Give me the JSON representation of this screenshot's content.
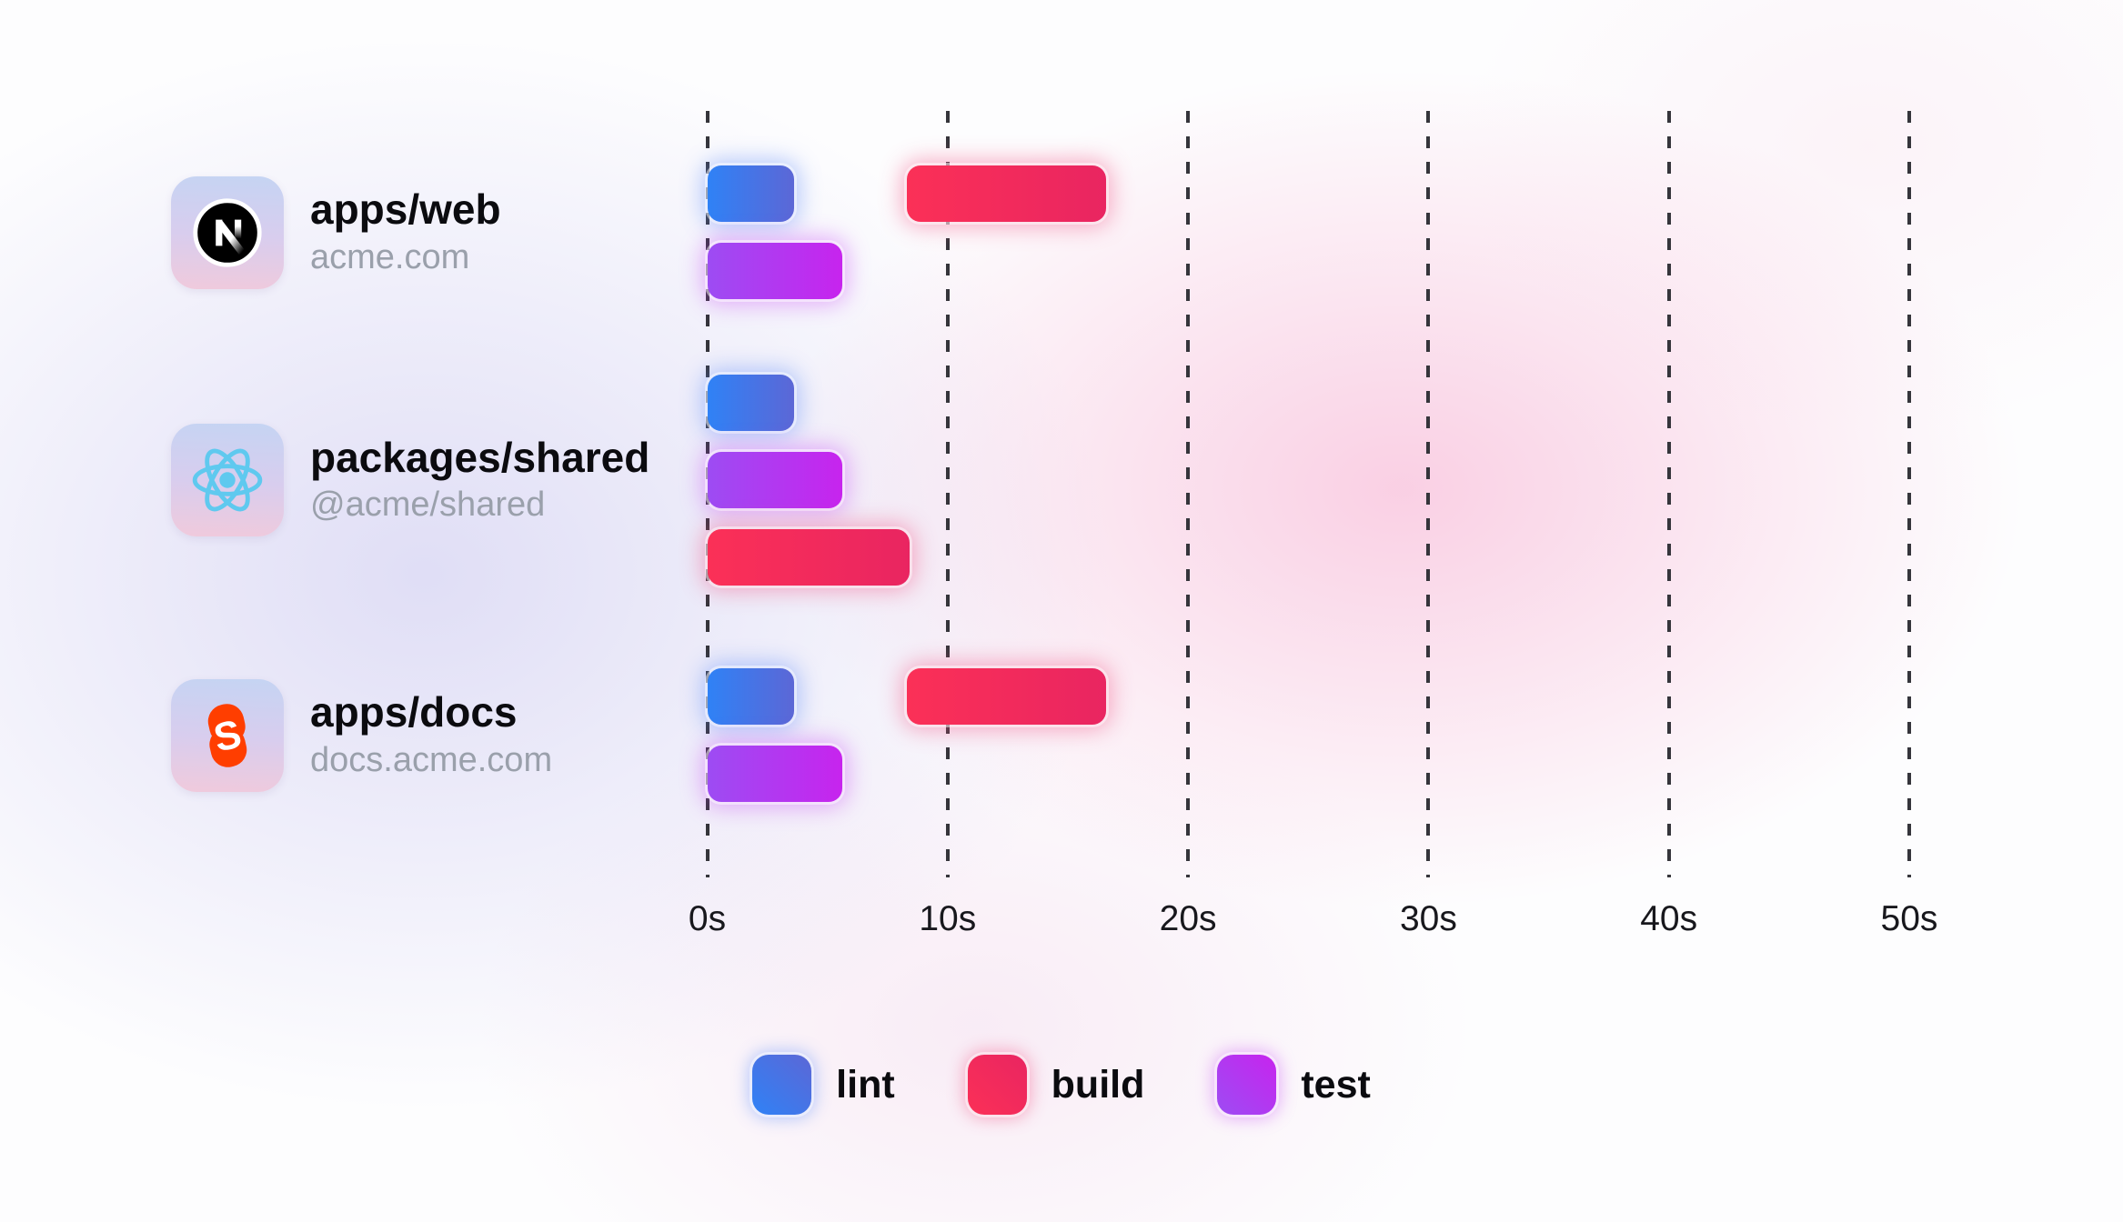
{
  "chart_data": {
    "type": "gantt",
    "title": "",
    "x_axis": {
      "unit": "seconds",
      "min": 0,
      "max": 50,
      "gridlines": "dashed-vertical",
      "ticks": [
        {
          "label": "0s",
          "value": 0
        },
        {
          "label": "10s",
          "value": 10
        },
        {
          "label": "20s",
          "value": 20
        },
        {
          "label": "30s",
          "value": 30
        },
        {
          "label": "40s",
          "value": 40
        },
        {
          "label": "50s",
          "value": 50
        }
      ]
    },
    "rows": [
      {
        "package": "apps/web",
        "subtitle": "acme.com",
        "icon": "nextjs-icon",
        "tasks": [
          {
            "task": "lint",
            "start_s": 0,
            "end_s": 3.6,
            "lane": 0
          },
          {
            "task": "build",
            "start_s": 8.3,
            "end_s": 16.6,
            "lane": 0
          },
          {
            "task": "test",
            "start_s": 0,
            "end_s": 5.6,
            "lane": 1
          }
        ]
      },
      {
        "package": "packages/shared",
        "subtitle": "@acme/shared",
        "icon": "react-icon",
        "tasks": [
          {
            "task": "lint",
            "start_s": 0,
            "end_s": 3.6,
            "lane": 0
          },
          {
            "task": "test",
            "start_s": 0,
            "end_s": 5.6,
            "lane": 1
          },
          {
            "task": "build",
            "start_s": 0,
            "end_s": 8.4,
            "lane": 2
          }
        ]
      },
      {
        "package": "apps/docs",
        "subtitle": "docs.acme.com",
        "icon": "svelte-icon",
        "tasks": [
          {
            "task": "lint",
            "start_s": 0,
            "end_s": 3.6,
            "lane": 0
          },
          {
            "task": "build",
            "start_s": 8.3,
            "end_s": 16.6,
            "lane": 0
          },
          {
            "task": "test",
            "start_s": 0,
            "end_s": 5.6,
            "lane": 1
          }
        ]
      }
    ],
    "legend": {
      "position": "bottom-center",
      "items": [
        {
          "label": "lint",
          "task": "lint"
        },
        {
          "label": "build",
          "task": "build"
        },
        {
          "label": "test",
          "task": "test"
        }
      ]
    },
    "task_colors": {
      "lint": {
        "from": "#2f82f6",
        "to": "#5c67d6",
        "glow": "rgba(96,140,250,0.45)"
      },
      "build": {
        "from": "#fb3057",
        "to": "#e92561",
        "glow": "rgba(242,80,130,0.45)"
      },
      "test": {
        "from": "#9d4cf3",
        "to": "#c724ee",
        "glow": "rgba(196,60,244,0.40)"
      }
    },
    "icon_colors": {
      "nextjs": "#000000",
      "react": "#5fc9ef",
      "svelte": "#ff3e00"
    }
  }
}
